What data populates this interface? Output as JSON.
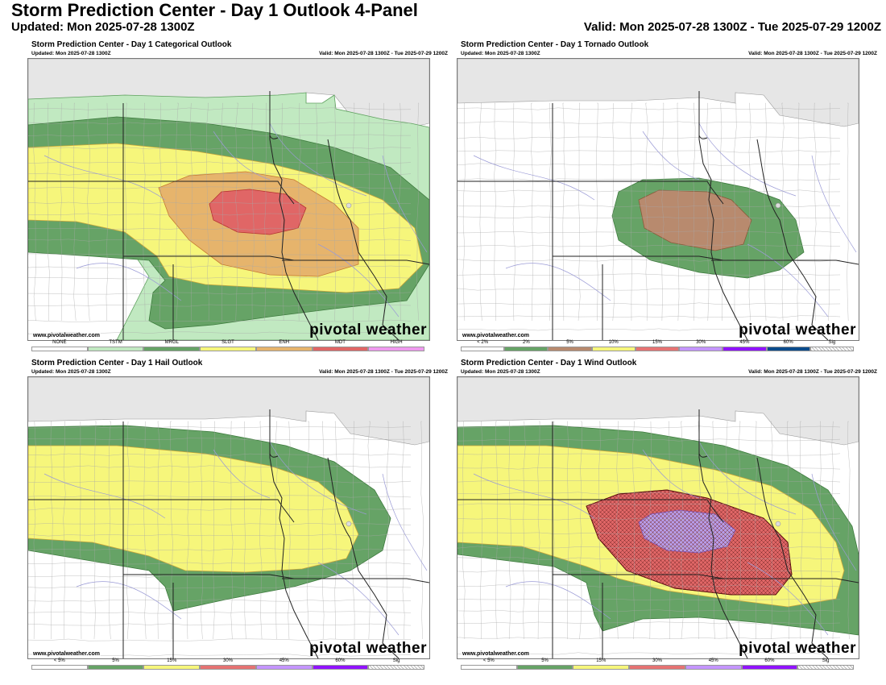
{
  "header": {
    "title": "Storm Prediction Center - Day 1 Outlook 4-Panel",
    "updated": "Updated: Mon 2025-07-28 1300Z",
    "valid": "Valid: Mon 2025-07-28 1300Z - Tue 2025-07-29 1200Z"
  },
  "common": {
    "updated": "Updated: Mon 2025-07-28 1300Z",
    "valid": "Valid: Mon 2025-07-28 1300Z - Tue 2025-07-29 1200Z",
    "credit": "www.pivotalweather.com",
    "brand": "pivotal weather"
  },
  "colors": {
    "tstm": "#c1e9c1",
    "mrgl": "#66a366",
    "slgt": "#f6f67b",
    "enh": "#e6b46c",
    "mdt": "#e06666",
    "high": "#ee99ee",
    "tor2": "#66a366",
    "tor5": "#b88a6e",
    "prob15": "#e67373",
    "prob30": "#c495ff",
    "prob45": "#9013fe",
    "prob60": "#0b4b8c",
    "hail5": "#66a366",
    "hail15": "#f6f67b",
    "wind30": "#e06666",
    "wind45": "#b79ce8",
    "canada": "#e6e6e6",
    "water": "#9b9bd6"
  },
  "panels": {
    "categorical": {
      "title": "Storm Prediction Center - Day 1 Categorical Outlook",
      "legend": [
        {
          "label": "NONE",
          "color": "#ffffff"
        },
        {
          "label": "TSTM",
          "color": "#c1e9c1"
        },
        {
          "label": "MRGL",
          "color": "#66a366"
        },
        {
          "label": "SLGT",
          "color": "#f6f67b"
        },
        {
          "label": "ENH",
          "color": "#e6b46c"
        },
        {
          "label": "MDT",
          "color": "#e06666"
        },
        {
          "label": "HIGH",
          "color": "#ee99ee"
        }
      ]
    },
    "tornado": {
      "title": "Storm Prediction Center - Day 1 Tornado Outlook",
      "legend": [
        {
          "label": "< 2%",
          "color": "#ffffff"
        },
        {
          "label": "2%",
          "color": "#66a366"
        },
        {
          "label": "5%",
          "color": "#b88a6e"
        },
        {
          "label": "10%",
          "color": "#f6f67b"
        },
        {
          "label": "15%",
          "color": "#e67373"
        },
        {
          "label": "30%",
          "color": "#c495ff"
        },
        {
          "label": "45%",
          "color": "#9013fe"
        },
        {
          "label": "60%",
          "color": "#0b4b8c"
        },
        {
          "label": "Sig",
          "color": "hatch"
        }
      ]
    },
    "hail": {
      "title": "Storm Prediction Center - Day 1 Hail Outlook",
      "legend": [
        {
          "label": "< 5%",
          "color": "#ffffff"
        },
        {
          "label": "5%",
          "color": "#66a366"
        },
        {
          "label": "15%",
          "color": "#f6f67b"
        },
        {
          "label": "30%",
          "color": "#e67373"
        },
        {
          "label": "45%",
          "color": "#c495ff"
        },
        {
          "label": "60%",
          "color": "#9013fe"
        },
        {
          "label": "Sig",
          "color": "hatch"
        }
      ]
    },
    "wind": {
      "title": "Storm Prediction Center - Day 1 Wind Outlook",
      "legend": [
        {
          "label": "< 5%",
          "color": "#ffffff"
        },
        {
          "label": "5%",
          "color": "#66a366"
        },
        {
          "label": "15%",
          "color": "#f6f67b"
        },
        {
          "label": "30%",
          "color": "#e67373"
        },
        {
          "label": "45%",
          "color": "#c495ff"
        },
        {
          "label": "60%",
          "color": "#9013fe"
        },
        {
          "label": "Sig",
          "color": "hatch"
        }
      ]
    }
  }
}
